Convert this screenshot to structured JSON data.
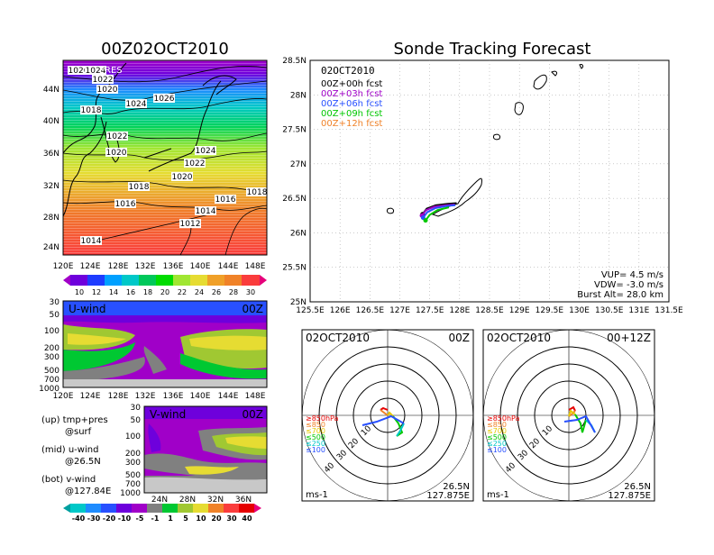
{
  "left_title": "00Z02OCT2010",
  "right_title": "Sonde Tracking Forecast",
  "map": {
    "label": "PRES",
    "lat_ticks": [
      "24N",
      "28N",
      "32N",
      "36N",
      "40N",
      "44N"
    ],
    "lon_ticks": [
      "120E",
      "124E",
      "128E",
      "132E",
      "136E",
      "140E",
      "144E",
      "148E"
    ],
    "isobars": [
      "1026",
      "1024",
      "1022",
      "1020",
      "1018",
      "1024",
      "1026",
      "1022",
      "1020",
      "1024",
      "1022",
      "1020",
      "1018",
      "1018",
      "1016",
      "1016",
      "1014",
      "1012",
      "1014"
    ],
    "colorbar": [
      "10",
      "12",
      "14",
      "16",
      "18",
      "20",
      "22",
      "24",
      "26",
      "28",
      "30"
    ],
    "colors": [
      "#a000c8",
      "#6e00dc",
      "#1e3cff",
      "#00a0ff",
      "#00c8c8",
      "#00dc00",
      "#a0e632",
      "#e6dc32",
      "#f08228",
      "#fa3c3c",
      "#e6007a"
    ]
  },
  "uwind": {
    "label": "U-wind",
    "time": "00Z",
    "y_ticks": [
      "30",
      "50",
      "100",
      "200",
      "300",
      "500",
      "700",
      "1000"
    ],
    "x_ticks": [
      "120E",
      "124E",
      "128E",
      "132E",
      "136E",
      "140E",
      "144E",
      "148E"
    ]
  },
  "vwind": {
    "label": "V-wind",
    "time": "00Z",
    "y_ticks": [
      "30",
      "50",
      "100",
      "200",
      "300",
      "500",
      "700",
      "1000"
    ],
    "x_ticks": [
      "24N",
      "28N",
      "32N",
      "36N"
    ],
    "colorbar": [
      "-40",
      "-30",
      "-20",
      "-10",
      "-5",
      "-1",
      "1",
      "5",
      "10",
      "20",
      "30",
      "40"
    ]
  },
  "legend_notes": [
    {
      "a": "(up)  tmp+pres",
      "b": "@surf"
    },
    {
      "a": "(mid)  u-wind",
      "b": "@26.5N"
    },
    {
      "a": "(bot)  v-wind",
      "b": "@127.84E"
    }
  ],
  "track": {
    "date_label": "02OCT2010",
    "legend": [
      {
        "text": "00Z+00h  fcst",
        "color": "#000000"
      },
      {
        "text": "00Z+03h  fcst",
        "color": "#a000c8"
      },
      {
        "text": "00Z+06h  fcst",
        "color": "#2850ff"
      },
      {
        "text": "00Z+09h  fcst",
        "color": "#00c800"
      },
      {
        "text": "00Z+12h  fcst",
        "color": "#f08228"
      }
    ],
    "lat_ticks": [
      "25N",
      "25.5N",
      "26N",
      "26.5N",
      "27N",
      "27.5N",
      "28N",
      "28.5N"
    ],
    "lon_ticks": [
      "125.5E",
      "126E",
      "126.5E",
      "127E",
      "127.5E",
      "128E",
      "128.5E",
      "129E",
      "129.5E",
      "130E",
      "130.5E",
      "131E",
      "131.5E"
    ],
    "vup": "VUP=  4.5  m/s",
    "vdw": "VDW=  -3.0  m/s",
    "burst": "Burst  Alt=  28.0  km"
  },
  "chart_data": [
    {
      "type": "line",
      "title": "Sonde Tracking Forecast",
      "xlim": [
        125.5,
        131.5
      ],
      "ylim": [
        25,
        28.5
      ],
      "series": [
        {
          "name": "00Z+00h  fcst",
          "x": [
            127.38,
            127.45,
            127.6,
            127.8,
            127.95
          ],
          "y": [
            26.27,
            26.35,
            26.4,
            26.42,
            26.43
          ]
        },
        {
          "name": "00Z+03h  fcst",
          "x": [
            127.37,
            127.44,
            127.58,
            127.78,
            127.92
          ],
          "y": [
            26.25,
            26.33,
            26.38,
            26.4,
            26.41
          ]
        },
        {
          "name": "00Z+06h  fcst",
          "x": [
            127.39,
            127.46,
            127.6,
            127.8,
            127.93
          ],
          "y": [
            26.22,
            26.3,
            26.36,
            26.39,
            26.4
          ]
        },
        {
          "name": "00Z+09h  fcst",
          "x": [
            127.43,
            127.5,
            127.63,
            127.82
          ],
          "y": [
            26.18,
            26.26,
            26.33,
            26.37
          ]
        }
      ]
    }
  ],
  "hodo_left": {
    "title": "02OCT2010",
    "time": "00Z",
    "unit": "ms-1",
    "lat": "26.5N",
    "lon": "127.875E",
    "ring_labels": [
      "10",
      "20",
      "30",
      "40"
    ],
    "levels": [
      "≥850hPa",
      "≤850",
      "≤700",
      "≤500",
      "≤250",
      "≤100"
    ]
  },
  "hodo_right": {
    "title": "02OCT2010",
    "time": "00+12Z",
    "unit": "ms-1",
    "lat": "26.5N",
    "lon": "127.875E",
    "ring_labels": [
      "10",
      "20",
      "30",
      "40"
    ],
    "levels": [
      "≥850hPa",
      "≤850",
      "≤700",
      "≤500",
      "≤250",
      "≤100"
    ]
  },
  "level_colors": [
    "#e60000",
    "#f08228",
    "#e6c800",
    "#00c800",
    "#00c8c8",
    "#2850ff"
  ]
}
